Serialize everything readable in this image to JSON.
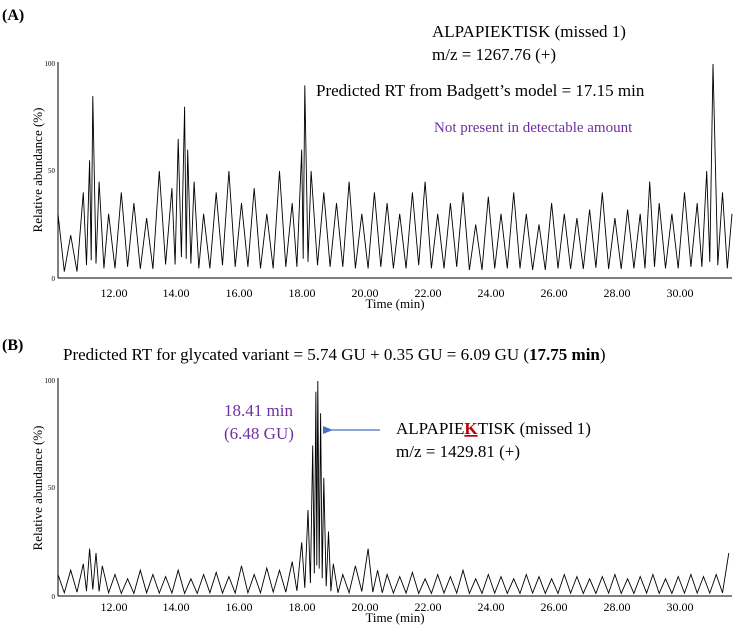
{
  "chart_data": [
    {
      "type": "line",
      "panel_label": "(A)",
      "xlabel": "Time (min)",
      "ylabel": "Relative abundance (%)",
      "xlim": [
        10.2,
        31.5
      ],
      "ylim": [
        0,
        100
      ],
      "xticks": [
        "12.00",
        "14.00",
        "16.00",
        "18.00",
        "20.00",
        "22.00",
        "24.00",
        "26.00",
        "28.00",
        "30.00"
      ],
      "yticks": [
        "0",
        "50",
        "100"
      ],
      "annotations": {
        "peptide": "ALPAPIEKTISK (missed 1)",
        "mz": "m/z = 1267.76 (+)",
        "predicted": "Predicted RT from Badgett’s model = 17.15 min",
        "status": "Not present in detectable amount"
      },
      "series": [
        {
          "x": [
            10.2,
            10.6,
            11.0,
            11.2,
            11.3,
            11.5,
            11.8,
            12.2,
            12.6,
            13.0,
            13.4,
            13.8,
            14.0,
            14.2,
            14.3,
            14.5,
            14.8,
            15.2,
            15.6,
            16.0,
            16.4,
            16.8,
            17.2,
            17.6,
            17.9,
            18.0,
            18.2,
            18.6,
            19.0,
            19.4,
            19.8,
            20.2,
            20.6,
            21.0,
            21.4,
            21.8,
            22.2,
            22.6,
            23.0,
            23.4,
            23.8,
            24.2,
            24.6,
            25.0,
            25.4,
            25.8,
            26.2,
            26.6,
            27.0,
            27.4,
            27.8,
            28.2,
            28.6,
            28.9,
            29.2,
            29.6,
            30.0,
            30.4,
            30.7,
            30.9,
            31.2,
            31.5
          ],
          "y": [
            30,
            20,
            40,
            55,
            85,
            45,
            30,
            40,
            35,
            28,
            50,
            42,
            65,
            80,
            60,
            45,
            30,
            40,
            50,
            35,
            42,
            30,
            50,
            35,
            60,
            90,
            50,
            40,
            35,
            45,
            30,
            40,
            35,
            30,
            40,
            45,
            30,
            35,
            40,
            25,
            38,
            30,
            40,
            30,
            25,
            35,
            30,
            28,
            32,
            40,
            28,
            32,
            30,
            45,
            35,
            30,
            40,
            35,
            50,
            100,
            40,
            30
          ]
        }
      ]
    },
    {
      "type": "line",
      "panel_label": "(B)",
      "title": "Predicted RT for glycated variant = 5.74 GU + 0.35 GU = 6.09 GU (",
      "title_bold": "17.75 min",
      "title_end": ")",
      "xlabel": "Time (min)",
      "ylabel": "Relative abundance (%)",
      "xlim": [
        10.2,
        31.5
      ],
      "ylim": [
        0,
        100
      ],
      "xticks": [
        "12.00",
        "14.00",
        "16.00",
        "18.00",
        "20.00",
        "22.00",
        "24.00",
        "26.00",
        "28.00",
        "30.00"
      ],
      "yticks": [
        "0",
        "50",
        "100"
      ],
      "annotations": {
        "peak_time": "18.41 min",
        "peak_gu": "(6.48 GU)",
        "peptide_pre": "ALPAPIE",
        "peptide_highlight": "K",
        "peptide_post": "TISK (missed 1)",
        "mz": "m/z = 1429.81 (+)"
      },
      "series": [
        {
          "x": [
            10.2,
            10.6,
            11.0,
            11.2,
            11.4,
            11.6,
            12.0,
            12.4,
            12.8,
            13.2,
            13.6,
            14.0,
            14.4,
            14.8,
            15.2,
            15.6,
            16.0,
            16.4,
            16.8,
            17.2,
            17.6,
            17.9,
            18.1,
            18.25,
            18.35,
            18.41,
            18.5,
            18.6,
            18.75,
            18.9,
            19.2,
            19.6,
            20.0,
            20.3,
            20.6,
            21.0,
            21.4,
            21.8,
            22.2,
            22.6,
            23.0,
            23.4,
            23.8,
            24.2,
            24.6,
            25.0,
            25.4,
            25.8,
            26.2,
            26.6,
            27.0,
            27.4,
            27.8,
            28.2,
            28.6,
            29.0,
            29.4,
            29.8,
            30.2,
            30.6,
            31.0,
            31.4
          ],
          "y": [
            10,
            12,
            15,
            22,
            20,
            14,
            10,
            8,
            12,
            10,
            9,
            12,
            8,
            10,
            11,
            9,
            14,
            10,
            13,
            12,
            16,
            25,
            40,
            70,
            95,
            100,
            85,
            55,
            30,
            15,
            10,
            14,
            22,
            12,
            10,
            9,
            11,
            8,
            10,
            9,
            12,
            8,
            10,
            9,
            8,
            10,
            9,
            8,
            10,
            9,
            8,
            9,
            10,
            8,
            9,
            10,
            8,
            9,
            10,
            9,
            10,
            20
          ]
        }
      ]
    }
  ]
}
